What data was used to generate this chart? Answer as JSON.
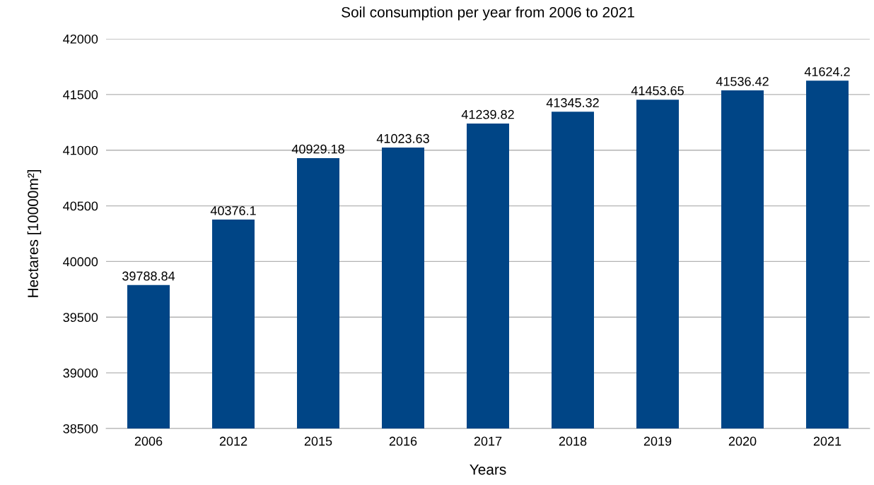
{
  "chart_data": {
    "type": "bar",
    "title": "Soil consumption per year from 2006 to 2021",
    "xlabel": "Years",
    "ylabel": "Hectares [10000m²]",
    "categories": [
      "2006",
      "2012",
      "2015",
      "2016",
      "2017",
      "2018",
      "2019",
      "2020",
      "2021"
    ],
    "values": [
      39788.84,
      40376.1,
      40929.18,
      41023.63,
      41239.82,
      41345.32,
      41453.65,
      41536.42,
      41624.2
    ],
    "color": "#004586",
    "data_labels": true,
    "ylim": [
      38500,
      42000
    ],
    "yticks": [
      38500,
      39000,
      39500,
      40000,
      40500,
      41000,
      41500,
      42000
    ],
    "grid": "y"
  }
}
